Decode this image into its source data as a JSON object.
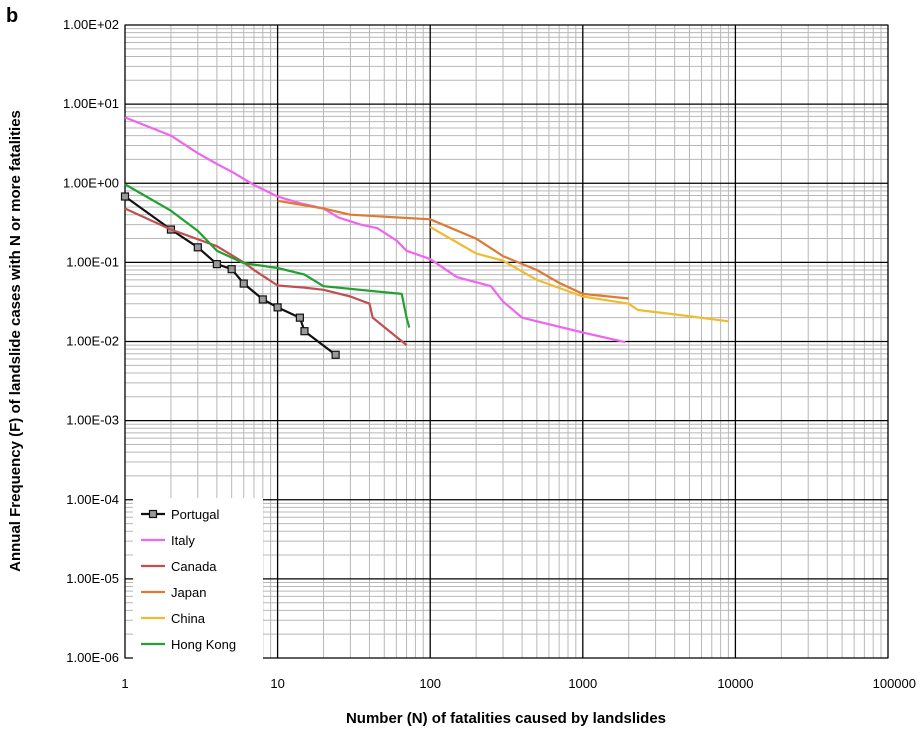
{
  "chart_data": {
    "type": "line",
    "panel_label": "b",
    "title": "",
    "xlabel": "Number (N) of fatalities caused by landslides",
    "ylabel": "Annual Frequency (F) of landslide cases with N or more fatalities",
    "x_scale": "log",
    "y_scale": "log",
    "xlim": [
      1,
      100000
    ],
    "ylim": [
      1e-06,
      100
    ],
    "x_ticks": [
      1,
      10,
      100,
      1000,
      10000,
      100000
    ],
    "x_tick_labels": [
      "1",
      "10",
      "100",
      "1000",
      "10000",
      "100000"
    ],
    "y_ticks": [
      1e-06,
      1e-05,
      0.0001,
      0.001,
      0.01,
      0.1,
      1,
      10,
      100
    ],
    "y_tick_labels": [
      "1.00E-06",
      "1.00E-05",
      "1.00E-04",
      "1.00E-03",
      "1.00E-02",
      "1.00E-01",
      "1.00E+00",
      "1.00E+01",
      "1.00E+02"
    ],
    "grid": true,
    "legend_position": "bottom-left",
    "series": [
      {
        "name": "Portugal",
        "color": "#111111",
        "marker": "square",
        "points": [
          [
            1,
            0.68
          ],
          [
            2,
            0.26
          ],
          [
            3,
            0.155
          ],
          [
            4,
            0.095
          ],
          [
            5,
            0.082
          ],
          [
            6,
            0.054
          ],
          [
            8,
            0.034
          ],
          [
            10,
            0.027
          ],
          [
            14,
            0.02
          ],
          [
            15,
            0.0135
          ],
          [
            24,
            0.0068
          ]
        ]
      },
      {
        "name": "Italy",
        "color": "#ee66ee",
        "marker": "none",
        "points": [
          [
            1,
            6.8
          ],
          [
            2,
            4.0
          ],
          [
            3,
            2.4
          ],
          [
            4,
            1.75
          ],
          [
            5,
            1.4
          ],
          [
            7,
            0.95
          ],
          [
            10,
            0.68
          ],
          [
            14,
            0.56
          ],
          [
            20,
            0.48
          ],
          [
            25,
            0.37
          ],
          [
            35,
            0.3
          ],
          [
            45,
            0.27
          ],
          [
            60,
            0.19
          ],
          [
            70,
            0.14
          ],
          [
            100,
            0.11
          ],
          [
            150,
            0.065
          ],
          [
            250,
            0.05
          ],
          [
            300,
            0.032
          ],
          [
            400,
            0.02
          ],
          [
            1000,
            0.013
          ],
          [
            1900,
            0.0098
          ]
        ]
      },
      {
        "name": "Canada",
        "color": "#c05050",
        "marker": "none",
        "points": [
          [
            1,
            0.48
          ],
          [
            2,
            0.26
          ],
          [
            4,
            0.16
          ],
          [
            6,
            0.1
          ],
          [
            7,
            0.08
          ],
          [
            10,
            0.051
          ],
          [
            15,
            0.048
          ],
          [
            20,
            0.045
          ],
          [
            30,
            0.037
          ],
          [
            40,
            0.03
          ],
          [
            42,
            0.02
          ],
          [
            70,
            0.009
          ]
        ]
      },
      {
        "name": "Japan",
        "color": "#dd7a33",
        "marker": "none",
        "points": [
          [
            10,
            0.6
          ],
          [
            20,
            0.48
          ],
          [
            30,
            0.4
          ],
          [
            60,
            0.37
          ],
          [
            100,
            0.35
          ],
          [
            200,
            0.2
          ],
          [
            300,
            0.12
          ],
          [
            500,
            0.08
          ],
          [
            700,
            0.055
          ],
          [
            1000,
            0.04
          ],
          [
            2000,
            0.035
          ]
        ]
      },
      {
        "name": "China",
        "color": "#f0bb30",
        "marker": "none",
        "points": [
          [
            100,
            0.28
          ],
          [
            200,
            0.13
          ],
          [
            300,
            0.105
          ],
          [
            500,
            0.06
          ],
          [
            1000,
            0.037
          ],
          [
            2000,
            0.03
          ],
          [
            2300,
            0.025
          ],
          [
            4000,
            0.022
          ],
          [
            9000,
            0.018
          ]
        ]
      },
      {
        "name": "Hong Kong",
        "color": "#22a030",
        "marker": "none",
        "points": [
          [
            1,
            0.97
          ],
          [
            2,
            0.45
          ],
          [
            3,
            0.25
          ],
          [
            4,
            0.14
          ],
          [
            6,
            0.098
          ],
          [
            10,
            0.085
          ],
          [
            15,
            0.07
          ],
          [
            20,
            0.05
          ],
          [
            65,
            0.04
          ],
          [
            70,
            0.02
          ],
          [
            73,
            0.015
          ]
        ]
      }
    ]
  }
}
